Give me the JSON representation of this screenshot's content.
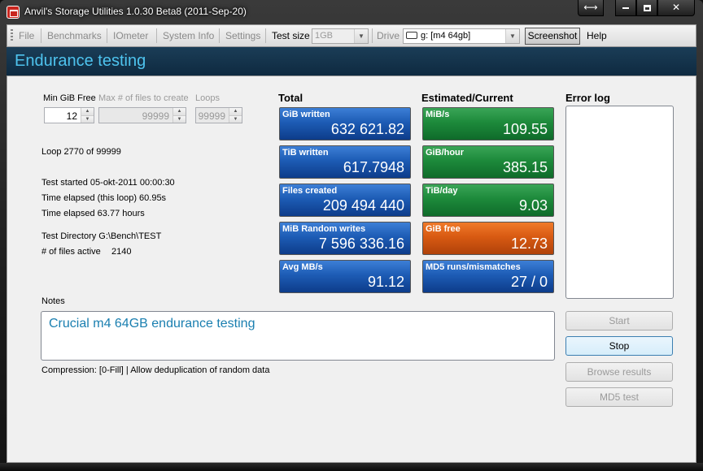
{
  "window": {
    "title": "Anvil's Storage Utilities 1.0.30 Beta8 (2011-Sep-20)",
    "snap_glyph": "⟷",
    "close_glyph": "✕"
  },
  "menu": {
    "file": "File",
    "benchmarks": "Benchmarks",
    "iometer": "IOmeter",
    "system_info": "System Info",
    "settings": "Settings",
    "test_size_label": "Test size",
    "test_size_value": "1GB",
    "drive_label": "Drive",
    "drive_value": "g: [m4 64gb]",
    "screenshot": "Screenshot",
    "help": "Help"
  },
  "header": {
    "title": "Endurance testing"
  },
  "settings": {
    "min_gib_free_label": "Min GiB Free",
    "min_gib_free_value": "12",
    "max_files_label": "Max # of files to create",
    "max_files_value": "99999",
    "loops_label": "Loops",
    "loops_value": "99999"
  },
  "info": {
    "loop": "Loop 2770 of 99999",
    "test_started": "Test started 05-okt-2011 00:00:30",
    "elapsed_loop": "Time elapsed (this loop) 60.95s",
    "elapsed_total": "Time elapsed 63.77 hours",
    "test_directory": "Test Directory G:\\Bench\\TEST",
    "files_active_label": "# of files active",
    "files_active_value": "2140"
  },
  "total": {
    "heading": "Total",
    "tiles": [
      {
        "label": "GiB written",
        "value": "632 621.82"
      },
      {
        "label": "TiB written",
        "value": "617.7948"
      },
      {
        "label": "Files created",
        "value": "209 494 440"
      },
      {
        "label": "MiB Random writes",
        "value": "7 596 336.16"
      },
      {
        "label": "Avg MB/s",
        "value": "91.12"
      }
    ]
  },
  "estimated": {
    "heading": "Estimated/Current",
    "tiles": [
      {
        "label": "MiB/s",
        "value": "109.55"
      },
      {
        "label": "GiB/hour",
        "value": "385.15"
      },
      {
        "label": "TiB/day",
        "value": "9.03"
      },
      {
        "label": "GiB free",
        "value": "12.73"
      },
      {
        "label": "MD5 runs/mismatches",
        "value": "27 / 0"
      }
    ]
  },
  "error_log": {
    "heading": "Error log"
  },
  "notes": {
    "label": "Notes",
    "text": "Crucial m4 64GB endurance testing",
    "compression": "Compression: [0-Fill]  | Allow deduplication of random data"
  },
  "buttons": {
    "start": "Start",
    "stop": "Stop",
    "browse_results": "Browse results",
    "md5_test": "MD5 test"
  },
  "colors": {
    "header_text": "#4ec3ee",
    "tile_blue": "#1d5cb5",
    "tile_green": "#1d8a3b",
    "tile_orange": "#d85a12",
    "notes_text": "#1a7fb0"
  }
}
